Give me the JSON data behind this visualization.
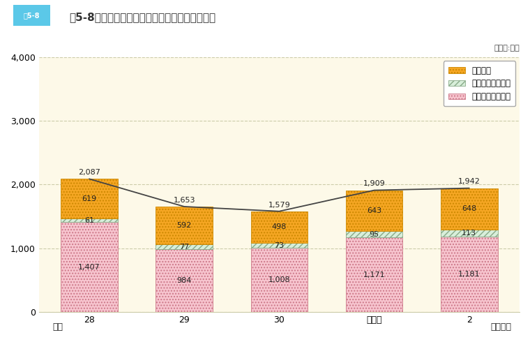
{
  "years": [
    "28",
    "29",
    "30",
    "令和元",
    "2"
  ],
  "injury": [
    1407,
    984,
    1008,
    1171,
    1181
  ],
  "disease": [
    61,
    77,
    73,
    95,
    113
  ],
  "commute": [
    619,
    592,
    498,
    643,
    648
  ],
  "totals": [
    2087,
    1653,
    1579,
    1909,
    1942
  ],
  "bar_color_injury": "#f7c5cf",
  "bar_color_disease": "#c8e6c9",
  "bar_color_commute": "#f5a623",
  "bar_edge_color": "#888888",
  "line_color": "#444444",
  "bg_color": "#fdf9e8",
  "plot_bg_color": "#fdf9e8",
  "title": "図5-8　公務災害及び通勤災害の認定件数の推移",
  "unit_label": "（単位:件）",
  "ylim": [
    0,
    4000
  ],
  "yticks": [
    0,
    1000,
    2000,
    3000,
    4000
  ],
  "legend_commute": "通勤災害",
  "legend_disease": "公務災害（疾病）",
  "legend_injury": "公務災害（負傷）",
  "xlabel_left": "平成",
  "xlabel_right": "（年度）",
  "bar_width": 0.6,
  "grid_color": "#ccccaa",
  "grid_style": "--"
}
